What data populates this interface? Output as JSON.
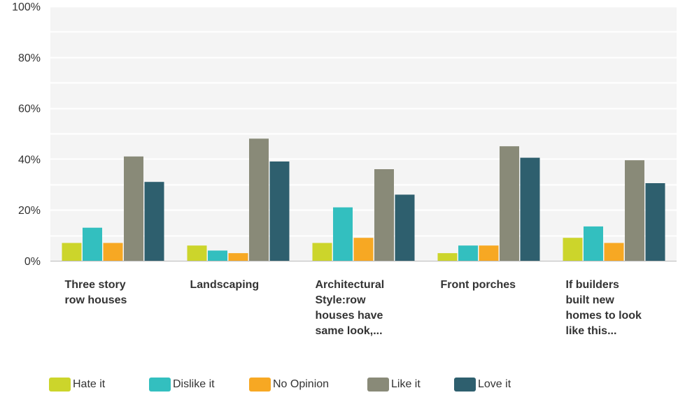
{
  "chart_data": {
    "type": "bar",
    "title": "",
    "xlabel": "",
    "ylabel": "",
    "ylim": [
      0,
      100
    ],
    "yticks": [
      "0%",
      "20%",
      "40%",
      "60%",
      "80%",
      "100%"
    ],
    "categories": [
      [
        "Three story",
        "row houses"
      ],
      [
        "Landscaping"
      ],
      [
        "Architectural",
        "Style:row",
        "houses have",
        "same look,..."
      ],
      [
        "Front porches"
      ],
      [
        "If builders",
        "built new",
        "homes to look",
        "like this..."
      ]
    ],
    "series": [
      {
        "name": "Hate it",
        "color": "#ccd52b",
        "values": [
          7,
          6,
          7,
          3,
          9
        ]
      },
      {
        "name": "Dislike it",
        "color": "#33bfbf",
        "values": [
          13,
          4,
          21,
          6,
          13.5
        ]
      },
      {
        "name": "No Opinion",
        "color": "#f7a823",
        "values": [
          7,
          3,
          9,
          6,
          7
        ]
      },
      {
        "name": "Like it",
        "color": "#898a78",
        "values": [
          41,
          48,
          36,
          45,
          39.5
        ]
      },
      {
        "name": "Love it",
        "color": "#2e5f6e",
        "values": [
          31,
          39,
          26,
          40.5,
          30.5
        ]
      }
    ],
    "grid": true,
    "legend_position": "bottom-left"
  }
}
